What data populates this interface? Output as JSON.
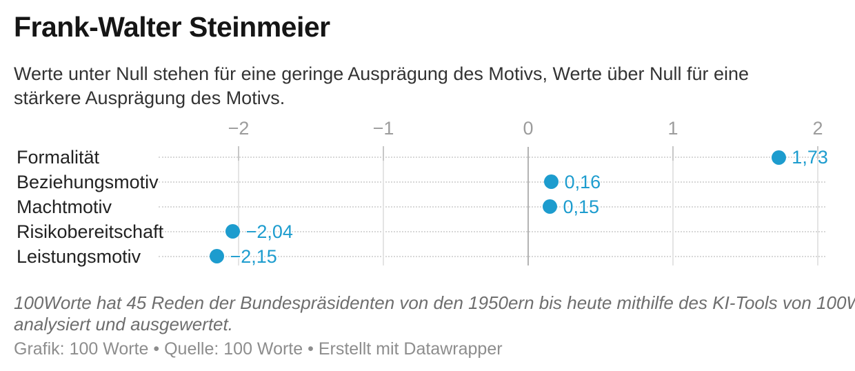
{
  "header": {
    "title": "Frank-Walter Steinmeier",
    "subtitle_lines": [
      "Werte unter Null stehen für eine geringe Ausprägung des Motivs, Werte über Null für eine",
      "stärkere Ausprägung des Motivs."
    ]
  },
  "chart_data": {
    "type": "scatter",
    "subtype": "horizontal-dot-plot",
    "categories": [
      "Formalität",
      "Beziehungsmotiv",
      "Machtmotiv",
      "Risikobereitschaft",
      "Leistungsmotiv"
    ],
    "values": [
      1.73,
      0.16,
      0.15,
      -2.04,
      -2.15
    ],
    "value_labels": [
      "1,73",
      "0,16",
      "0,15",
      "−2,04",
      "−2,15"
    ],
    "x_ticks": {
      "values": [
        -2,
        -1,
        0,
        1,
        2
      ],
      "labels": [
        "−2",
        "−1",
        "0",
        "1",
        "2"
      ]
    },
    "xlim": [
      -2.55,
      2.05
    ],
    "grid": "vertical solid lines at integer ticks (zero line darker), horizontal dotted line per category row",
    "legend": "none",
    "colors": {
      "accent": "#1d9cce",
      "axis_text": "#9c9c9c",
      "gridline": "#e4e4e4",
      "zero_line": "#b3b3b3",
      "row_dotted": "#d7d7d7",
      "category_text": "#222222"
    }
  },
  "footer": {
    "footnote_lines": [
      "100Worte hat 45 Reden der Bundespräsidenten von den 1950ern bis heute mithilfe des KI-Tools von 100W",
      "analysiert und ausgewertet."
    ],
    "credits": {
      "graphic": "Grafik: 100 Worte",
      "source": "Quelle: 100 Worte",
      "created": "Erstellt mit Datawrapper",
      "separator": " • "
    }
  }
}
